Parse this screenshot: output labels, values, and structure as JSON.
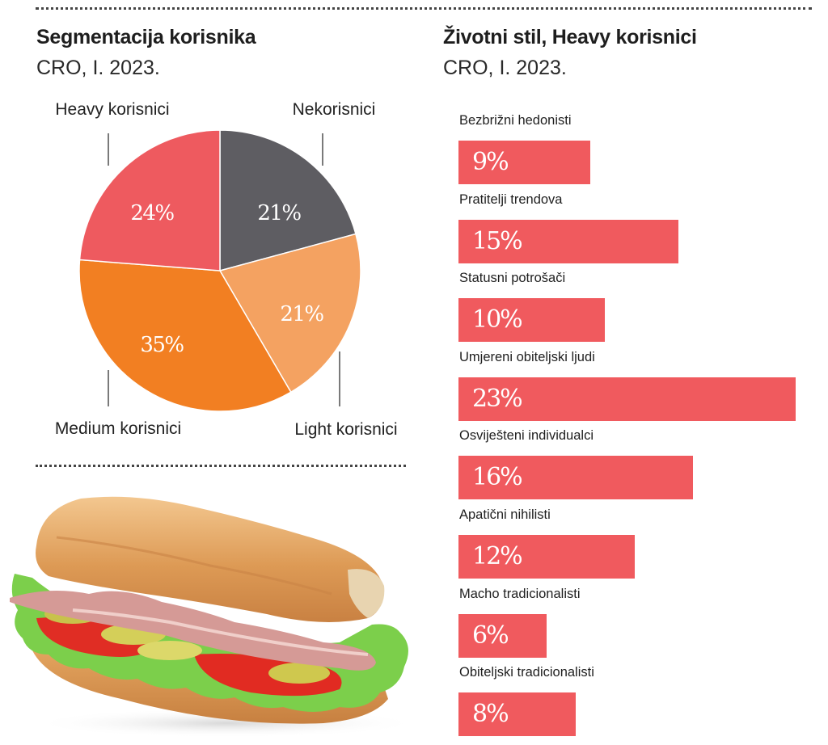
{
  "left_panel": {
    "title": "Segmentacija korisnika",
    "subtitle": "CRO, I. 2023."
  },
  "right_panel": {
    "title": "Životni stil, Heavy korisnici",
    "subtitle": "CRO, I. 2023."
  },
  "image": {
    "description": "sandwich-photo"
  },
  "chart_data": [
    {
      "type": "pie",
      "title": "Segmentacija korisnika",
      "subtitle": "CRO, I. 2023.",
      "unit": "%",
      "start": "top",
      "direction": "clockwise",
      "slices": [
        {
          "label": "Nekorisnici",
          "value": 21,
          "value_label": "21%",
          "color": "#5e5d62"
        },
        {
          "label": "Light korisnici",
          "value": 21,
          "value_label": "21%",
          "color": "#f4a261"
        },
        {
          "label": "Medium korisnici",
          "value": 35,
          "value_label": "35%",
          "color": "#f27f22"
        },
        {
          "label": "Heavy korisnici",
          "value": 24,
          "value_label": "24%",
          "color": "#ee5a5f"
        }
      ]
    },
    {
      "type": "bar",
      "orientation": "horizontal",
      "title": "Životni stil, Heavy korisnici",
      "subtitle": "CRO, I. 2023.",
      "unit": "%",
      "color": "#f05a5e",
      "xlim": [
        0,
        23
      ],
      "grid": false,
      "categories": [
        "Bezbrižni hedonisti",
        "Pratitelji trendova",
        "Statusni potrošači",
        "Umjereni obiteljski ljudi",
        "Osviješteni individualci",
        "Apatični nihilisti",
        "Macho tradicionalisti",
        "Obiteljski tradicionalisti"
      ],
      "values": [
        9,
        15,
        10,
        23,
        16,
        12,
        6,
        8
      ],
      "value_labels": [
        "9%",
        "15%",
        "10%",
        "23%",
        "16%",
        "12%",
        "6%",
        "8%"
      ]
    }
  ]
}
